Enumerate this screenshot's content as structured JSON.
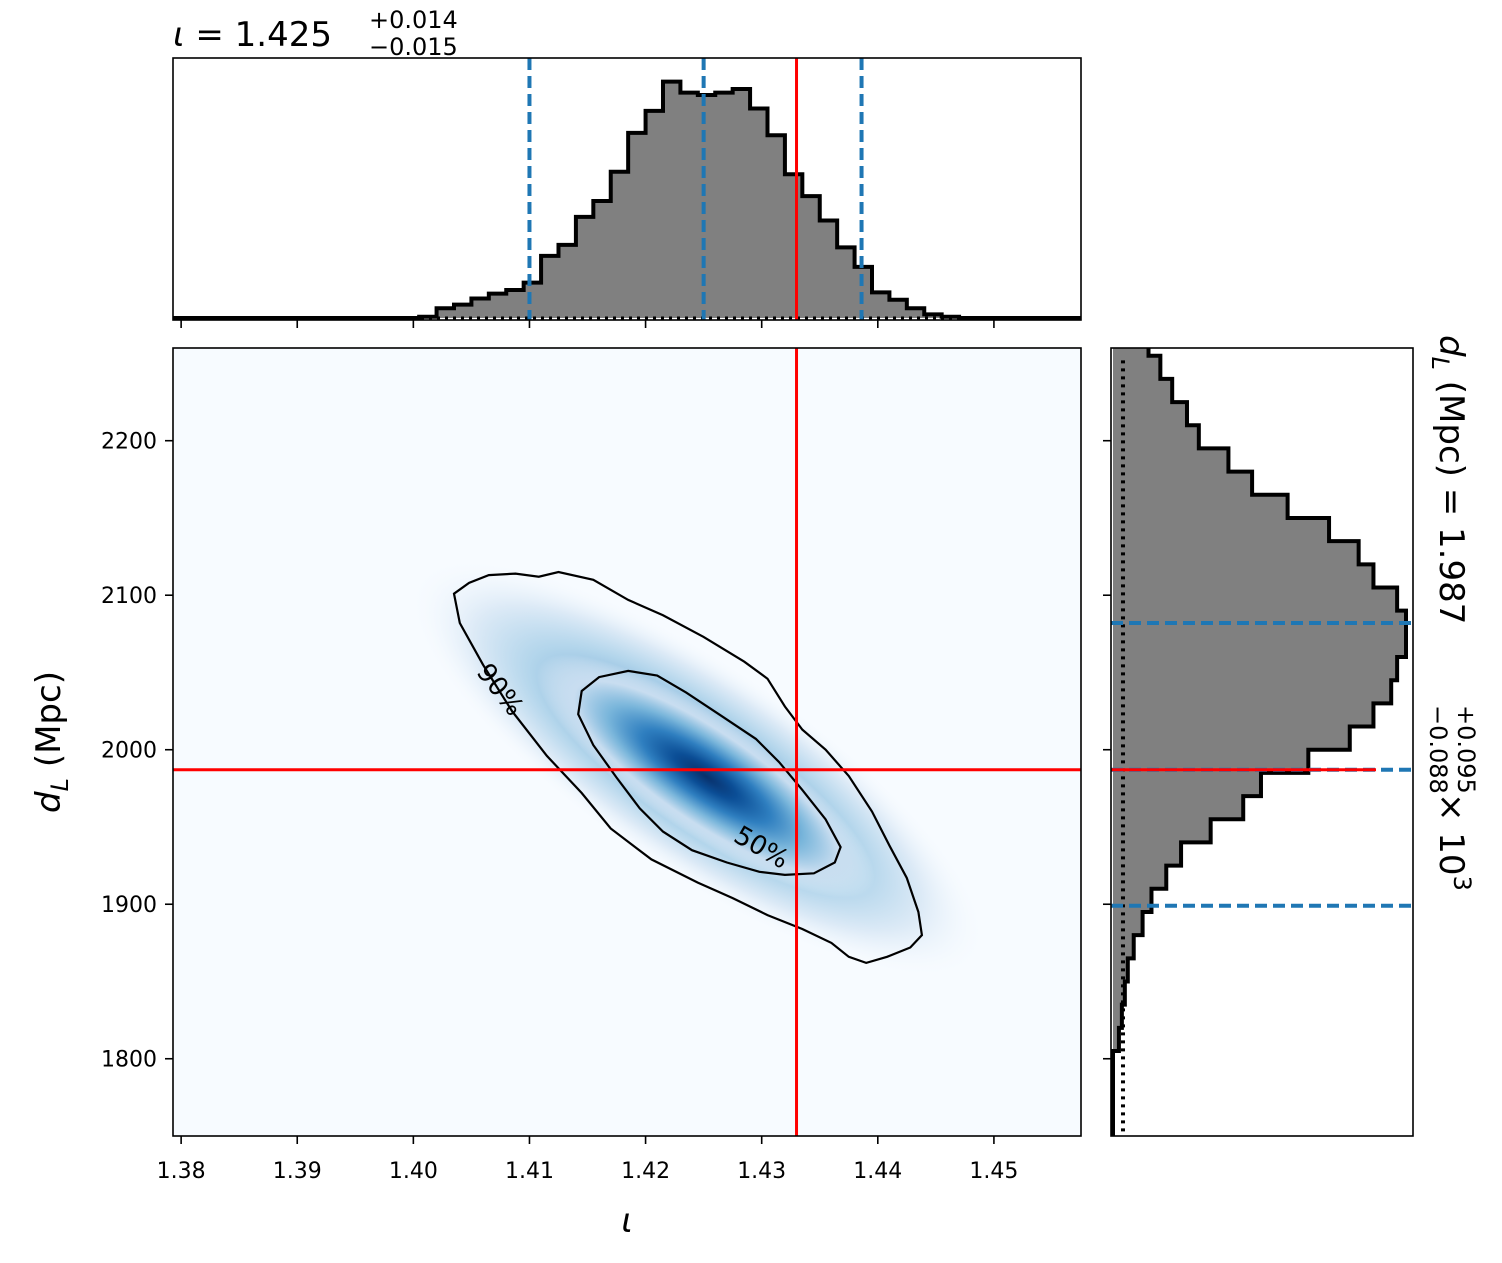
{
  "chart_data": [
    {
      "type": "histogram",
      "panel": "top-marginal",
      "parameter": "ι",
      "title": {
        "param": "ι",
        "equals": " = ",
        "median": "1.425",
        "upper": "+0.014",
        "lower": "−0.015"
      },
      "xlim": [
        1.3793,
        1.4575
      ],
      "x_ticks": [
        1.38,
        1.39,
        1.4,
        1.41,
        1.42,
        1.43,
        1.44,
        1.45
      ],
      "y_ticks_shown": false,
      "bin_width": 0.0015,
      "bin_start": 1.4005,
      "counts": [
        0.005,
        0.04,
        0.055,
        0.08,
        0.1,
        0.115,
        0.145,
        0.255,
        0.3,
        0.415,
        0.48,
        0.6,
        0.76,
        0.85,
        0.97,
        0.925,
        0.915,
        0.925,
        0.94,
        0.86,
        0.75,
        0.59,
        0.5,
        0.4,
        0.29,
        0.21,
        0.105,
        0.075,
        0.04,
        0.015,
        0.005
      ],
      "quantiles": {
        "median": 1.425,
        "low": 1.41,
        "high": 1.4386
      },
      "truth": 1.433,
      "prior_line": "dotted",
      "colors": {
        "fill": "#808080",
        "outline": "#000000",
        "quantile": "#1f77b4",
        "truth": "#ff0000"
      }
    },
    {
      "type": "heatmap",
      "panel": "joint",
      "x_parameter": "ι",
      "y_parameter": "d_L",
      "xlabel": "ι",
      "ylabel": {
        "base": "d",
        "sub": "L",
        "rest": " (Mpc)"
      },
      "xlim": [
        1.3793,
        1.4575
      ],
      "ylim": [
        1750,
        2260
      ],
      "x_ticks": [
        1.38,
        1.39,
        1.4,
        1.41,
        1.42,
        1.43,
        1.44,
        1.45
      ],
      "x_tick_labels": [
        "1.38",
        "1.39",
        "1.40",
        "1.41",
        "1.42",
        "1.43",
        "1.44",
        "1.45"
      ],
      "y_ticks": [
        1800,
        1900,
        2000,
        2100,
        2200
      ],
      "y_tick_labels": [
        "1800",
        "1900",
        "2000",
        "2100",
        "2200"
      ],
      "density_peak": {
        "x": 1.4245,
        "y": 1988
      },
      "colormap": "Blues",
      "contours": [
        {
          "level": "90%",
          "label": "90%",
          "label_at": [
            1.4075,
            2039
          ],
          "label_angle": 52,
          "points": [
            [
              1.4035,
              2101
            ],
            [
              1.4048,
              2108
            ],
            [
              1.4065,
              2113
            ],
            [
              1.4088,
              2114
            ],
            [
              1.4108,
              2112
            ],
            [
              1.4125,
              2115
            ],
            [
              1.4155,
              2110
            ],
            [
              1.4185,
              2097
            ],
            [
              1.4215,
              2087
            ],
            [
              1.425,
              2073
            ],
            [
              1.4285,
              2057
            ],
            [
              1.4305,
              2046
            ],
            [
              1.432,
              2028
            ],
            [
              1.4335,
              2013
            ],
            [
              1.4355,
              2000
            ],
            [
              1.4375,
              1983
            ],
            [
              1.4395,
              1960
            ],
            [
              1.441,
              1938
            ],
            [
              1.4425,
              1917
            ],
            [
              1.4435,
              1895
            ],
            [
              1.4438,
              1880
            ],
            [
              1.4428,
              1872
            ],
            [
              1.4408,
              1866
            ],
            [
              1.439,
              1862
            ],
            [
              1.4375,
              1866
            ],
            [
              1.436,
              1875
            ],
            [
              1.4335,
              1884
            ],
            [
              1.4305,
              1893
            ],
            [
              1.4275,
              1904
            ],
            [
              1.4245,
              1914
            ],
            [
              1.4205,
              1929
            ],
            [
              1.417,
              1949
            ],
            [
              1.4145,
              1972
            ],
            [
              1.4115,
              1996
            ],
            [
              1.4085,
              2025
            ],
            [
              1.406,
              2055
            ],
            [
              1.404,
              2082
            ]
          ]
        },
        {
          "level": "50%",
          "label": "50%",
          "label_at": [
            1.43,
            1937
          ],
          "label_angle": 30,
          "points": [
            [
              1.4145,
              2038
            ],
            [
              1.416,
              2047
            ],
            [
              1.4185,
              2051
            ],
            [
              1.421,
              2048
            ],
            [
              1.4235,
              2037
            ],
            [
              1.4265,
              2022
            ],
            [
              1.4295,
              2007
            ],
            [
              1.4315,
              1992
            ],
            [
              1.4335,
              1974
            ],
            [
              1.4355,
              1955
            ],
            [
              1.4368,
              1937
            ],
            [
              1.4363,
              1927
            ],
            [
              1.4345,
              1920
            ],
            [
              1.432,
              1919
            ],
            [
              1.4298,
              1921
            ],
            [
              1.427,
              1927
            ],
            [
              1.424,
              1935
            ],
            [
              1.4215,
              1947
            ],
            [
              1.4195,
              1962
            ],
            [
              1.4175,
              1982
            ],
            [
              1.4155,
              2003
            ],
            [
              1.4142,
              2023
            ]
          ]
        }
      ],
      "truth": {
        "x": 1.433,
        "y": 1987
      },
      "colors": {
        "contour": "#000000",
        "truth": "#ff0000"
      }
    },
    {
      "type": "histogram",
      "panel": "right-marginal",
      "orientation": "horizontal",
      "parameter": "d_L",
      "title": {
        "param": "d",
        "sub": "L",
        "unit": " (Mpc) = ",
        "median": "1.987",
        "upper": "+0.095",
        "lower": "−0.088",
        "scale": "× 10",
        "exponent": "3"
      },
      "ylim": [
        1750,
        2260
      ],
      "y_ticks": [
        1800,
        1900,
        2000,
        2100,
        2200
      ],
      "bin_width": 15,
      "bin_start": 1805,
      "counts": [
        0.02,
        0.03,
        0.04,
        0.05,
        0.07,
        0.1,
        0.13,
        0.18,
        0.23,
        0.33,
        0.44,
        0.5,
        0.66,
        0.8,
        0.88,
        0.94,
        0.96,
        0.99,
        0.99,
        0.96,
        0.88,
        0.83,
        0.73,
        0.59,
        0.47,
        0.39,
        0.29,
        0.25,
        0.2,
        0.16,
        0.12,
        0.09,
        0.07,
        0.05,
        0.04,
        0.02,
        0.015,
        0.01,
        0.005
      ],
      "quantiles": {
        "median": 1987,
        "low": 1899,
        "high": 2082
      },
      "truth": 1987,
      "prior_line": "dotted",
      "colors": {
        "fill": "#808080",
        "outline": "#000000",
        "quantile": "#1f77b4",
        "truth": "#ff0000"
      }
    }
  ]
}
